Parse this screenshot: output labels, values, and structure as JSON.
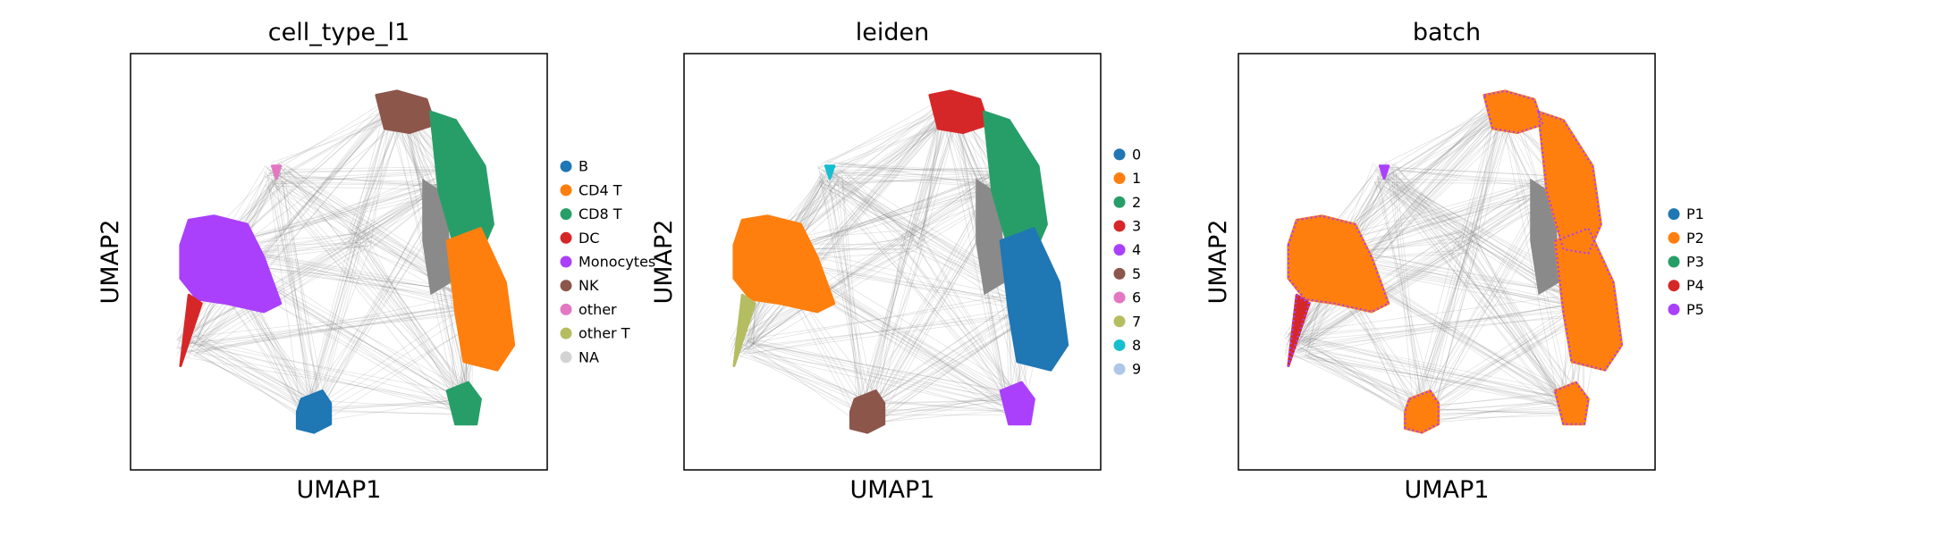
{
  "chart_data": [
    {
      "type": "scatter",
      "title": "cell_type_l1",
      "xlabel": "UMAP1",
      "ylabel": "UMAP2",
      "xticks": false,
      "yticks": false,
      "legend_position": "right",
      "legend": [
        {
          "label": "B",
          "color": "#1f77b4"
        },
        {
          "label": "CD4 T",
          "color": "#ff7f0e"
        },
        {
          "label": "CD8 T",
          "color": "#279e68"
        },
        {
          "label": "DC",
          "color": "#d62728"
        },
        {
          "label": "Monocytes",
          "color": "#aa40fc"
        },
        {
          "label": "NK",
          "color": "#8c564b"
        },
        {
          "label": "other",
          "color": "#e377c2"
        },
        {
          "label": "other T",
          "color": "#b5bd61"
        },
        {
          "label": "NA",
          "color": "#d3d3d3"
        }
      ]
    },
    {
      "type": "scatter",
      "title": "leiden",
      "xlabel": "UMAP1",
      "ylabel": "UMAP2",
      "xticks": false,
      "yticks": false,
      "legend_position": "right",
      "legend": [
        {
          "label": "0",
          "color": "#1f77b4"
        },
        {
          "label": "1",
          "color": "#ff7f0e"
        },
        {
          "label": "2",
          "color": "#279e68"
        },
        {
          "label": "3",
          "color": "#d62728"
        },
        {
          "label": "4",
          "color": "#aa40fc"
        },
        {
          "label": "5",
          "color": "#8c564b"
        },
        {
          "label": "6",
          "color": "#e377c2"
        },
        {
          "label": "7",
          "color": "#b5bd61"
        },
        {
          "label": "8",
          "color": "#17becf"
        },
        {
          "label": "9",
          "color": "#aec7e8"
        }
      ]
    },
    {
      "type": "scatter",
      "title": "batch",
      "xlabel": "UMAP1",
      "ylabel": "UMAP2",
      "xticks": false,
      "yticks": false,
      "legend_position": "right",
      "legend": [
        {
          "label": "P1",
          "color": "#1f77b4"
        },
        {
          "label": "P2",
          "color": "#ff7f0e"
        },
        {
          "label": "P3",
          "color": "#279e68"
        },
        {
          "label": "P4",
          "color": "#d62728"
        },
        {
          "label": "P5",
          "color": "#aa40fc"
        }
      ]
    }
  ]
}
